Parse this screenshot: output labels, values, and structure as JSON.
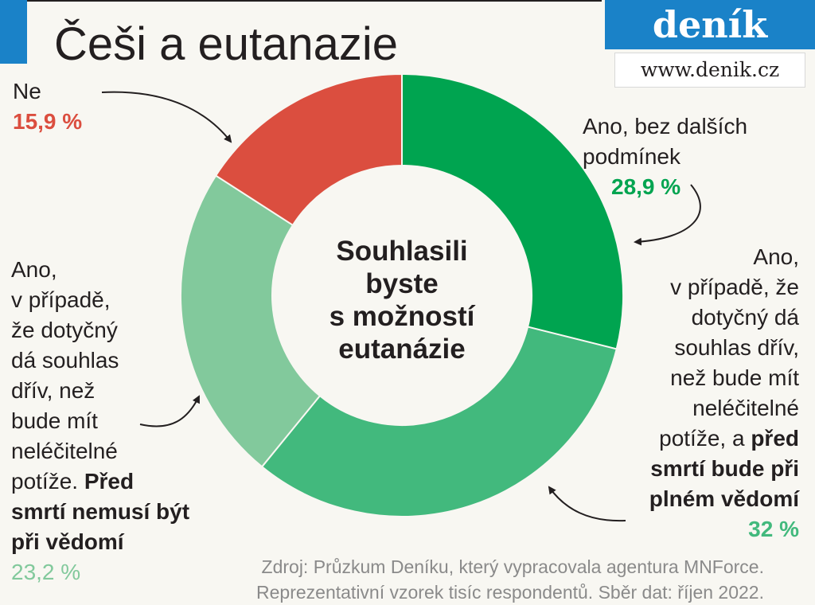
{
  "title": "Češi a eutanazie",
  "brand": {
    "name": "deník",
    "url": "www.denik.cz"
  },
  "center_text": [
    "Souhlasili",
    "byste",
    "s možností",
    "eutanázie"
  ],
  "colors": {
    "ano_bez": "#00a450",
    "ano_plne": "#42b97d",
    "ano_nemusi": "#82c99c",
    "ne": "#db4e3f",
    "brand": "#1a82c8"
  },
  "labels": {
    "ne": {
      "text": "Ne",
      "pct": "15,9 %"
    },
    "ano_bez": {
      "line1": "Ano, bez dalších",
      "line2": "podmínek",
      "pct": "28,9 %"
    },
    "ano_plne": {
      "lines": [
        "Ano,",
        "v případě, že",
        "dotyčný dá",
        "souhlas dřív,",
        "než bude mít",
        "neléčitelné"
      ],
      "lead": "potíže, a ",
      "bold1": "před",
      "bold2": "smrtí bude při",
      "bold3": "plném vědomí",
      "pct": "32 %"
    },
    "ano_nemusi": {
      "lines": [
        "Ano,",
        "v případě,",
        "že dotyčný",
        "dá souhlas",
        "dřív, než",
        "bude mít",
        "neléčitelné"
      ],
      "lead": "potíže. ",
      "bold1": "Před",
      "bold2": "smrtí nemusí být",
      "bold3": "při vědomí",
      "pct": "23,2 %"
    }
  },
  "source": {
    "line1": "Zdroj: Průzkum Deníku, který vypracovala agentura MNForce.",
    "line2": "Reprezentativní vzorek tisíc respondentů. Sběr dat: říjen 2022."
  },
  "chart_data": {
    "type": "pie",
    "title": "Češi a eutanazie",
    "subtitle": "Souhlasili byste s možností eutanázie",
    "categories": [
      "Ano, bez dalších podmínek",
      "Ano, v případě, že dotyčný dá souhlas dřív, než bude mít neléčitelné potíže, a před smrtí bude při plném vědomí",
      "Ano, v případě, že dotyčný dá souhlas dřív, než bude mít neléčitelné potíže. Před smrtí nemusí být při vědomí",
      "Ne"
    ],
    "values": [
      28.9,
      32,
      23.2,
      15.9
    ],
    "colors": [
      "#00a450",
      "#42b97d",
      "#82c99c",
      "#db4e3f"
    ],
    "unit": "%",
    "donut": true
  }
}
